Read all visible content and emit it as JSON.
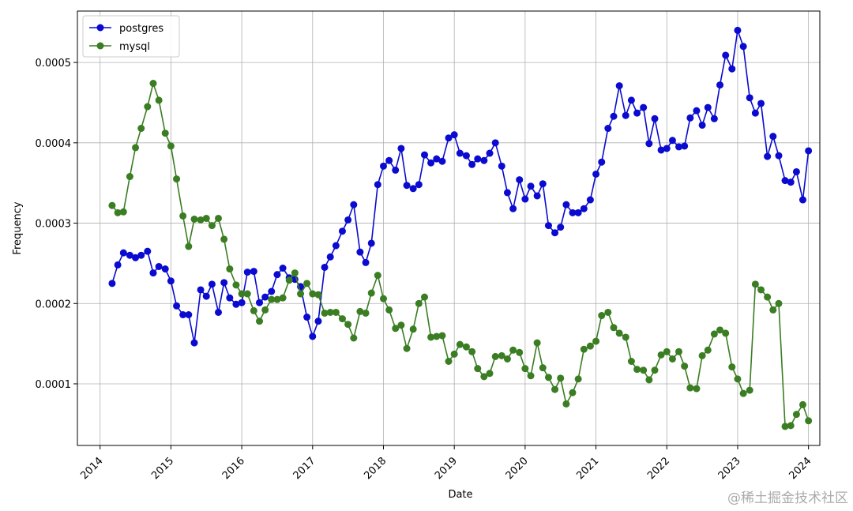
{
  "chart_data": {
    "type": "line",
    "xlabel": "Date",
    "ylabel": "Frequency",
    "watermark": "@稀土掘金技术社区",
    "x": [
      2014.17,
      2014.25,
      2014.33,
      2014.42,
      2014.5,
      2014.58,
      2014.67,
      2014.75,
      2014.83,
      2014.92,
      2015.0,
      2015.08,
      2015.17,
      2015.25,
      2015.33,
      2015.42,
      2015.5,
      2015.58,
      2015.67,
      2015.75,
      2015.83,
      2015.92,
      2016.0,
      2016.08,
      2016.17,
      2016.25,
      2016.33,
      2016.42,
      2016.5,
      2016.58,
      2016.67,
      2016.75,
      2016.83,
      2016.92,
      2017.0,
      2017.08,
      2017.17,
      2017.25,
      2017.33,
      2017.42,
      2017.5,
      2017.58,
      2017.67,
      2017.75,
      2017.83,
      2017.92,
      2018.0,
      2018.08,
      2018.17,
      2018.25,
      2018.33,
      2018.42,
      2018.5,
      2018.58,
      2018.67,
      2018.75,
      2018.83,
      2018.92,
      2019.0,
      2019.08,
      2019.17,
      2019.25,
      2019.33,
      2019.42,
      2019.5,
      2019.58,
      2019.67,
      2019.75,
      2019.83,
      2019.92,
      2020.0,
      2020.08,
      2020.17,
      2020.25,
      2020.33,
      2020.42,
      2020.5,
      2020.58,
      2020.67,
      2020.75,
      2020.83,
      2020.92,
      2021.0,
      2021.08,
      2021.17,
      2021.25,
      2021.33,
      2021.42,
      2021.5,
      2021.58,
      2021.67,
      2021.75,
      2021.83,
      2021.92,
      2022.0,
      2022.08,
      2022.17,
      2022.25,
      2022.33,
      2022.42,
      2022.5,
      2022.58,
      2022.67,
      2022.75,
      2022.83,
      2022.92,
      2023.0,
      2023.08,
      2023.17,
      2023.25,
      2023.33,
      2023.42,
      2023.5,
      2023.58,
      2023.67,
      2023.75,
      2023.83,
      2023.92,
      2024.0
    ],
    "series": [
      {
        "name": "postgres",
        "color": "#0a0ad0",
        "values": [
          0.000225,
          0.000248,
          0.000263,
          0.00026,
          0.000257,
          0.00026,
          0.000265,
          0.000238,
          0.000246,
          0.000243,
          0.000228,
          0.000197,
          0.000186,
          0.000186,
          0.000151,
          0.000217,
          0.000209,
          0.000224,
          0.000189,
          0.000226,
          0.000207,
          0.000199,
          0.000201,
          0.000239,
          0.00024,
          0.000201,
          0.000208,
          0.000215,
          0.000236,
          0.000244,
          0.000232,
          0.00023,
          0.000221,
          0.000183,
          0.000159,
          0.000178,
          0.000245,
          0.000258,
          0.000272,
          0.00029,
          0.000304,
          0.000323,
          0.000264,
          0.000251,
          0.000275,
          0.000348,
          0.000371,
          0.000378,
          0.000366,
          0.000393,
          0.000347,
          0.000343,
          0.000348,
          0.000385,
          0.000375,
          0.00038,
          0.000377,
          0.000406,
          0.00041,
          0.000387,
          0.000384,
          0.000373,
          0.00038,
          0.000378,
          0.000387,
          0.0004,
          0.000371,
          0.000338,
          0.000318,
          0.000354,
          0.00033,
          0.000346,
          0.000334,
          0.000349,
          0.000297,
          0.000288,
          0.000295,
          0.000323,
          0.000313,
          0.000313,
          0.000318,
          0.000329,
          0.000361,
          0.000376,
          0.000418,
          0.000433,
          0.000471,
          0.000434,
          0.000453,
          0.000437,
          0.000444,
          0.000399,
          0.00043,
          0.000391,
          0.000393,
          0.000403,
          0.000395,
          0.000396,
          0.000431,
          0.00044,
          0.000422,
          0.000444,
          0.00043,
          0.000472,
          0.000509,
          0.000492,
          0.00054,
          0.00052,
          0.000456,
          0.000437,
          0.000449,
          0.000383,
          0.000408,
          0.000384,
          0.000353,
          0.000351,
          0.000364,
          0.000329,
          0.00039
        ]
      },
      {
        "name": "mysql",
        "color": "#3a7d22",
        "values": [
          0.000322,
          0.000313,
          0.000314,
          0.000358,
          0.000394,
          0.000418,
          0.000445,
          0.000474,
          0.000453,
          0.000412,
          0.000396,
          0.000355,
          0.000309,
          0.000271,
          0.000305,
          0.000304,
          0.000306,
          0.000297,
          0.000306,
          0.00028,
          0.000243,
          0.000223,
          0.000212,
          0.000212,
          0.000191,
          0.000178,
          0.000192,
          0.000205,
          0.000205,
          0.000207,
          0.000229,
          0.000238,
          0.000212,
          0.000225,
          0.000212,
          0.000211,
          0.000188,
          0.000189,
          0.000189,
          0.000181,
          0.000174,
          0.000157,
          0.00019,
          0.000188,
          0.000213,
          0.000235,
          0.000206,
          0.000192,
          0.000169,
          0.000173,
          0.000144,
          0.000168,
          0.0002,
          0.000208,
          0.000158,
          0.000159,
          0.00016,
          0.000128,
          0.000137,
          0.000149,
          0.000146,
          0.00014,
          0.000119,
          0.000109,
          0.000113,
          0.000134,
          0.000135,
          0.000131,
          0.000142,
          0.000139,
          0.000119,
          0.00011,
          0.000151,
          0.00012,
          0.000108,
          9.3e-05,
          0.000107,
          7.5e-05,
          8.9e-05,
          0.000106,
          0.000143,
          0.000147,
          0.000153,
          0.000185,
          0.000189,
          0.00017,
          0.000163,
          0.000158,
          0.000128,
          0.000118,
          0.000117,
          0.000105,
          0.000117,
          0.000136,
          0.00014,
          0.000131,
          0.00014,
          0.000122,
          9.5e-05,
          9.4e-05,
          0.000135,
          0.000142,
          0.000162,
          0.000167,
          0.000163,
          0.000121,
          0.000106,
          8.8e-05,
          9.2e-05,
          0.000224,
          0.000217,
          0.000208,
          0.000192,
          0.0002,
          4.7e-05,
          4.8e-05,
          6.2e-05,
          7.4e-05,
          5.4e-05
        ]
      }
    ],
    "xlim": [
      2013.68,
      2024.16
    ],
    "xticks": [
      2014,
      2015,
      2016,
      2017,
      2018,
      2019,
      2020,
      2021,
      2022,
      2023,
      2024
    ],
    "ylim": [
      2.33e-05,
      0.000564
    ],
    "yticks": [
      0.0001,
      0.0002,
      0.0003,
      0.0004,
      0.0005
    ],
    "grid": true,
    "legend": "upper-left"
  }
}
